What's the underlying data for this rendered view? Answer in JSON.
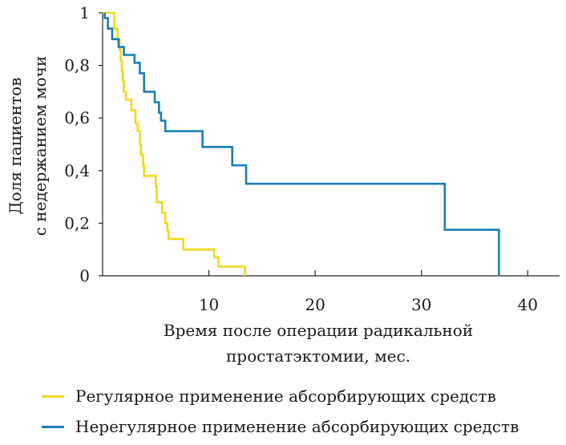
{
  "chart_data": {
    "type": "line",
    "step": true,
    "ylabel_line1": "Доля пациентов",
    "ylabel_line2": "с недержанием мочи",
    "xlabel_line1": "Время после операции радикальной",
    "xlabel_line2": "простатэктомии, мес.",
    "xlim": [
      0,
      43
    ],
    "ylim": [
      0,
      1
    ],
    "x_ticks": [
      10,
      20,
      30,
      40
    ],
    "x_tick_labels": [
      "10",
      "20",
      "30",
      "40"
    ],
    "y_ticks": [
      0,
      0.2,
      0.4,
      0.6,
      0.8,
      1
    ],
    "y_tick_labels": [
      "0",
      "0,2",
      "0,4",
      "0,6",
      "0,8",
      "1"
    ],
    "grid": false,
    "legend_position": "bottom",
    "series": [
      {
        "name": "Регулярное применение абсорбирующих средств",
        "color": "#f2d91b",
        "points": [
          [
            0,
            1
          ],
          [
            1.1,
            1
          ],
          [
            1.1,
            0.94
          ],
          [
            1.4,
            0.94
          ],
          [
            1.4,
            0.9
          ],
          [
            1.6,
            0.9
          ],
          [
            1.6,
            0.86
          ],
          [
            1.7,
            0.86
          ],
          [
            1.7,
            0.82
          ],
          [
            1.8,
            0.82
          ],
          [
            1.8,
            0.78
          ],
          [
            1.9,
            0.78
          ],
          [
            1.9,
            0.74
          ],
          [
            2.0,
            0.74
          ],
          [
            2.0,
            0.7
          ],
          [
            2.2,
            0.7
          ],
          [
            2.2,
            0.67
          ],
          [
            2.7,
            0.67
          ],
          [
            2.7,
            0.63
          ],
          [
            3.1,
            0.63
          ],
          [
            3.1,
            0.58
          ],
          [
            3.3,
            0.58
          ],
          [
            3.3,
            0.55
          ],
          [
            3.5,
            0.55
          ],
          [
            3.5,
            0.5
          ],
          [
            3.6,
            0.5
          ],
          [
            3.6,
            0.46
          ],
          [
            3.8,
            0.46
          ],
          [
            3.8,
            0.42
          ],
          [
            3.9,
            0.42
          ],
          [
            3.9,
            0.38
          ],
          [
            5.0,
            0.38
          ],
          [
            5.0,
            0.34
          ],
          [
            5.1,
            0.34
          ],
          [
            5.1,
            0.28
          ],
          [
            5.6,
            0.28
          ],
          [
            5.6,
            0.24
          ],
          [
            5.9,
            0.24
          ],
          [
            5.9,
            0.2
          ],
          [
            6.1,
            0.2
          ],
          [
            6.1,
            0.17
          ],
          [
            6.2,
            0.17
          ],
          [
            6.2,
            0.14
          ],
          [
            7.6,
            0.14
          ],
          [
            7.6,
            0.1
          ],
          [
            10.5,
            0.1
          ],
          [
            10.5,
            0.07
          ],
          [
            10.9,
            0.07
          ],
          [
            10.9,
            0.035
          ],
          [
            13.4,
            0.035
          ],
          [
            13.4,
            0
          ]
        ]
      },
      {
        "name": "Нерегулярное применение абсорбирующих средств",
        "color": "#1a7fb5",
        "points": [
          [
            0.2,
            1
          ],
          [
            0.2,
            0.98
          ],
          [
            0.5,
            0.98
          ],
          [
            0.5,
            0.94
          ],
          [
            0.9,
            0.94
          ],
          [
            0.9,
            0.9
          ],
          [
            1.5,
            0.9
          ],
          [
            1.5,
            0.87
          ],
          [
            2.0,
            0.87
          ],
          [
            2.0,
            0.84
          ],
          [
            3.0,
            0.84
          ],
          [
            3.0,
            0.81
          ],
          [
            3.5,
            0.81
          ],
          [
            3.5,
            0.77
          ],
          [
            3.9,
            0.77
          ],
          [
            3.9,
            0.7
          ],
          [
            4.9,
            0.7
          ],
          [
            4.9,
            0.66
          ],
          [
            5.3,
            0.66
          ],
          [
            5.3,
            0.62
          ],
          [
            5.5,
            0.62
          ],
          [
            5.5,
            0.59
          ],
          [
            5.9,
            0.59
          ],
          [
            5.9,
            0.55
          ],
          [
            9.4,
            0.55
          ],
          [
            9.4,
            0.49
          ],
          [
            12.2,
            0.49
          ],
          [
            12.2,
            0.42
          ],
          [
            13.5,
            0.42
          ],
          [
            13.5,
            0.35
          ],
          [
            32.2,
            0.35
          ],
          [
            32.2,
            0.175
          ],
          [
            37.3,
            0.175
          ],
          [
            37.3,
            0
          ]
        ]
      }
    ]
  }
}
